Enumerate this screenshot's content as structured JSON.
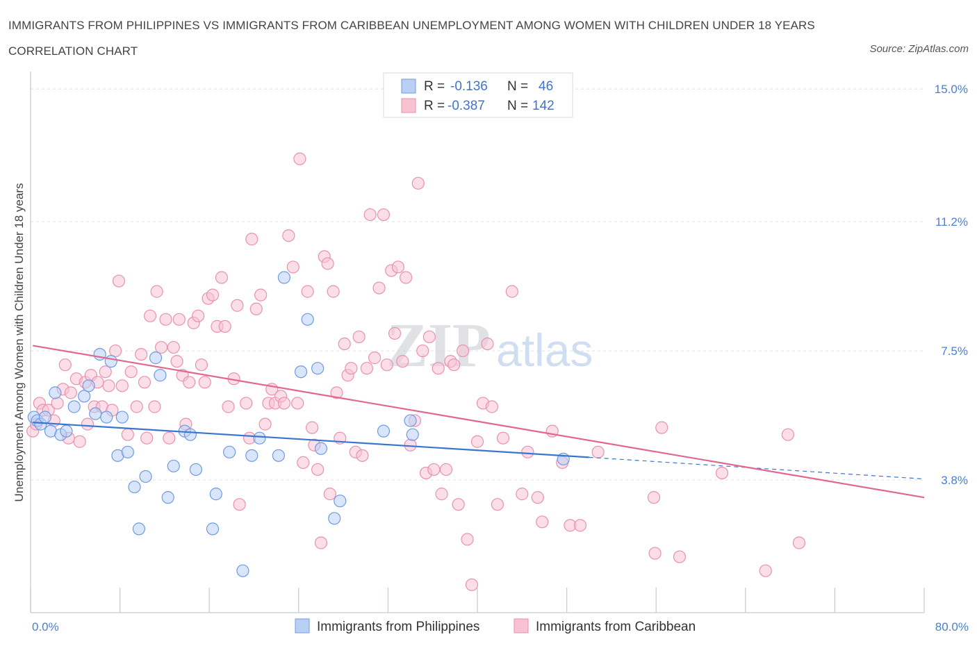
{
  "title": "IMMIGRANTS FROM PHILIPPINES VS IMMIGRANTS FROM CARIBBEAN UNEMPLOYMENT AMONG WOMEN WITH CHILDREN UNDER 18 YEARS CORRELATION CHART",
  "source": "Source: ZipAtlas.com",
  "watermark": {
    "zip": "ZIP",
    "atlas": "atlas"
  },
  "colors": {
    "philippines_fill": "#b9d0f5",
    "philippines_stroke": "#6f9be0",
    "philippines_line": "#3a76cf",
    "caribbean_fill": "#f7c3d3",
    "caribbean_stroke": "#e692b0",
    "caribbean_line": "#e0678f",
    "tick_text": "#4a7fd4",
    "grid": "#dde1e8"
  },
  "legend": {
    "rows": [
      {
        "r_label": "R =",
        "r_value": "-0.136",
        "n_label": "N =",
        "n_value": "46"
      },
      {
        "r_label": "R =",
        "r_value": "-0.387",
        "n_label": "N =",
        "n_value": "142"
      }
    ]
  },
  "chart_data": {
    "type": "scatter",
    "title": "IMMIGRANTS FROM PHILIPPINES VS IMMIGRANTS FROM CARIBBEAN UNEMPLOYMENT AMONG WOMEN WITH CHILDREN UNDER 18 YEARS CORRELATION CHART",
    "xlabel": "",
    "ylabel": "Unemployment Among Women with Children Under 18 years",
    "xlim": [
      0,
      80
    ],
    "ylim": [
      0,
      15.5
    ],
    "x_tick_labels": [
      "0.0%",
      "80.0%"
    ],
    "y_ticks": [
      3.8,
      7.5,
      11.2,
      15.0
    ],
    "y_tick_labels": [
      "3.8%",
      "7.5%",
      "11.2%",
      "15.0%"
    ],
    "grid": true,
    "legend_position": "top-center",
    "series": [
      {
        "name": "Immigrants from Philippines",
        "r": -0.136,
        "n": 46,
        "trend": {
          "x0": 0.2,
          "y0": 5.45,
          "x1": 50,
          "y1": 4.45,
          "dash_to_x": 80,
          "dash_to_y": 3.83
        },
        "points": [
          [
            0.3,
            5.6
          ],
          [
            0.6,
            5.5
          ],
          [
            0.9,
            5.4
          ],
          [
            1.3,
            5.6
          ],
          [
            1.8,
            5.2
          ],
          [
            2.2,
            6.3
          ],
          [
            2.7,
            5.1
          ],
          [
            3.2,
            5.2
          ],
          [
            3.9,
            5.9
          ],
          [
            4.8,
            6.2
          ],
          [
            5.2,
            6.5
          ],
          [
            5.8,
            5.7
          ],
          [
            6.2,
            7.4
          ],
          [
            6.8,
            5.6
          ],
          [
            7.2,
            7.2
          ],
          [
            7.8,
            4.5
          ],
          [
            8.2,
            5.6
          ],
          [
            8.7,
            4.6
          ],
          [
            9.3,
            3.6
          ],
          [
            9.7,
            2.4
          ],
          [
            10.3,
            3.9
          ],
          [
            11.2,
            7.3
          ],
          [
            11.6,
            6.8
          ],
          [
            12.3,
            3.3
          ],
          [
            12.8,
            4.2
          ],
          [
            13.8,
            5.2
          ],
          [
            14.3,
            5.1
          ],
          [
            14.8,
            4.1
          ],
          [
            16.3,
            2.4
          ],
          [
            16.6,
            3.4
          ],
          [
            17.8,
            4.6
          ],
          [
            19.0,
            1.2
          ],
          [
            19.8,
            4.5
          ],
          [
            20.5,
            5.0
          ],
          [
            22.2,
            4.5
          ],
          [
            22.7,
            9.6
          ],
          [
            24.2,
            6.9
          ],
          [
            24.8,
            8.4
          ],
          [
            25.7,
            7.0
          ],
          [
            26.0,
            4.7
          ],
          [
            27.2,
            2.7
          ],
          [
            27.7,
            3.2
          ],
          [
            31.6,
            5.2
          ],
          [
            34.0,
            5.5
          ],
          [
            34.2,
            5.1
          ],
          [
            47.7,
            4.4
          ]
        ]
      },
      {
        "name": "Immigrants from Caribbean",
        "r": -0.387,
        "n": 142,
        "trend": {
          "x0": 0.2,
          "y0": 7.65,
          "x1": 80,
          "y1": 3.3
        },
        "points": [
          [
            0.2,
            5.2
          ],
          [
            0.5,
            5.4
          ],
          [
            0.8,
            6.0
          ],
          [
            1.1,
            5.8
          ],
          [
            1.6,
            5.8
          ],
          [
            2.1,
            5.5
          ],
          [
            2.4,
            6.0
          ],
          [
            2.9,
            6.4
          ],
          [
            3.1,
            7.1
          ],
          [
            3.6,
            6.3
          ],
          [
            3.4,
            5.0
          ],
          [
            4.1,
            6.7
          ],
          [
            4.4,
            4.9
          ],
          [
            4.9,
            6.6
          ],
          [
            5.1,
            5.4
          ],
          [
            5.4,
            6.8
          ],
          [
            5.7,
            5.9
          ],
          [
            6.0,
            6.6
          ],
          [
            6.4,
            5.9
          ],
          [
            6.7,
            6.9
          ],
          [
            7.0,
            6.5
          ],
          [
            7.3,
            5.8
          ],
          [
            7.6,
            7.5
          ],
          [
            7.9,
            9.5
          ],
          [
            8.2,
            6.5
          ],
          [
            8.7,
            5.1
          ],
          [
            9.0,
            6.9
          ],
          [
            9.5,
            5.9
          ],
          [
            9.9,
            7.4
          ],
          [
            10.2,
            6.6
          ],
          [
            10.4,
            5.0
          ],
          [
            10.7,
            8.5
          ],
          [
            11.1,
            5.9
          ],
          [
            11.3,
            9.2
          ],
          [
            11.7,
            7.6
          ],
          [
            12.1,
            8.4
          ],
          [
            12.4,
            5.0
          ],
          [
            12.8,
            7.6
          ],
          [
            13.1,
            7.2
          ],
          [
            13.3,
            8.4
          ],
          [
            13.6,
            6.8
          ],
          [
            13.9,
            5.4
          ],
          [
            14.2,
            6.6
          ],
          [
            14.6,
            8.3
          ],
          [
            15.0,
            8.5
          ],
          [
            15.3,
            7.1
          ],
          [
            15.6,
            6.6
          ],
          [
            15.9,
            9.0
          ],
          [
            16.3,
            9.1
          ],
          [
            16.7,
            8.2
          ],
          [
            17.1,
            9.6
          ],
          [
            17.4,
            8.2
          ],
          [
            17.7,
            5.9
          ],
          [
            18.2,
            6.7
          ],
          [
            18.5,
            8.8
          ],
          [
            18.7,
            3.1
          ],
          [
            19.3,
            6.0
          ],
          [
            19.6,
            5.0
          ],
          [
            19.8,
            10.7
          ],
          [
            20.2,
            8.7
          ],
          [
            20.6,
            9.1
          ],
          [
            21.0,
            5.4
          ],
          [
            21.3,
            6.0
          ],
          [
            21.6,
            6.4
          ],
          [
            21.9,
            6.0
          ],
          [
            22.4,
            6.2
          ],
          [
            22.7,
            6.0
          ],
          [
            23.1,
            10.8
          ],
          [
            23.5,
            9.9
          ],
          [
            23.9,
            6.0
          ],
          [
            24.1,
            13.0
          ],
          [
            24.4,
            4.3
          ],
          [
            24.8,
            9.2
          ],
          [
            25.2,
            5.3
          ],
          [
            25.4,
            4.8
          ],
          [
            25.7,
            4.1
          ],
          [
            26.0,
            2.0
          ],
          [
            26.3,
            10.2
          ],
          [
            26.6,
            10.0
          ],
          [
            26.8,
            3.4
          ],
          [
            27.1,
            9.2
          ],
          [
            27.4,
            6.3
          ],
          [
            27.7,
            5.0
          ],
          [
            28.1,
            7.7
          ],
          [
            28.4,
            6.8
          ],
          [
            28.7,
            7.0
          ],
          [
            29.1,
            4.6
          ],
          [
            29.4,
            7.9
          ],
          [
            29.7,
            4.5
          ],
          [
            30.1,
            7.0
          ],
          [
            30.4,
            11.4
          ],
          [
            30.8,
            7.3
          ],
          [
            31.2,
            9.3
          ],
          [
            31.6,
            11.4
          ],
          [
            31.9,
            7.1
          ],
          [
            32.3,
            9.8
          ],
          [
            32.6,
            8.0
          ],
          [
            32.9,
            9.9
          ],
          [
            33.3,
            7.2
          ],
          [
            33.6,
            9.6
          ],
          [
            34.0,
            4.8
          ],
          [
            34.4,
            5.5
          ],
          [
            34.7,
            12.3
          ],
          [
            35.1,
            7.5
          ],
          [
            35.4,
            4.0
          ],
          [
            35.7,
            7.9
          ],
          [
            36.1,
            4.1
          ],
          [
            36.5,
            7.0
          ],
          [
            36.8,
            3.4
          ],
          [
            37.2,
            4.1
          ],
          [
            37.6,
            7.2
          ],
          [
            37.9,
            7.1
          ],
          [
            38.3,
            3.1
          ],
          [
            38.7,
            7.5
          ],
          [
            39.1,
            2.1
          ],
          [
            39.5,
            0.8
          ],
          [
            40.0,
            4.9
          ],
          [
            40.5,
            6.0
          ],
          [
            40.9,
            7.7
          ],
          [
            41.3,
            5.9
          ],
          [
            41.8,
            3.1
          ],
          [
            42.3,
            5.0
          ],
          [
            43.1,
            9.2
          ],
          [
            44.0,
            3.4
          ],
          [
            44.5,
            4.6
          ],
          [
            45.4,
            3.3
          ],
          [
            45.8,
            2.6
          ],
          [
            46.7,
            5.2
          ],
          [
            47.6,
            4.3
          ],
          [
            48.3,
            2.5
          ],
          [
            49.2,
            2.5
          ],
          [
            50.8,
            4.6
          ],
          [
            55.8,
            3.3
          ],
          [
            55.9,
            1.7
          ],
          [
            56.5,
            5.3
          ],
          [
            58.1,
            1.6
          ],
          [
            61.9,
            4.0
          ],
          [
            65.8,
            1.2
          ],
          [
            67.8,
            5.1
          ],
          [
            68.8,
            2.0
          ]
        ]
      }
    ]
  }
}
